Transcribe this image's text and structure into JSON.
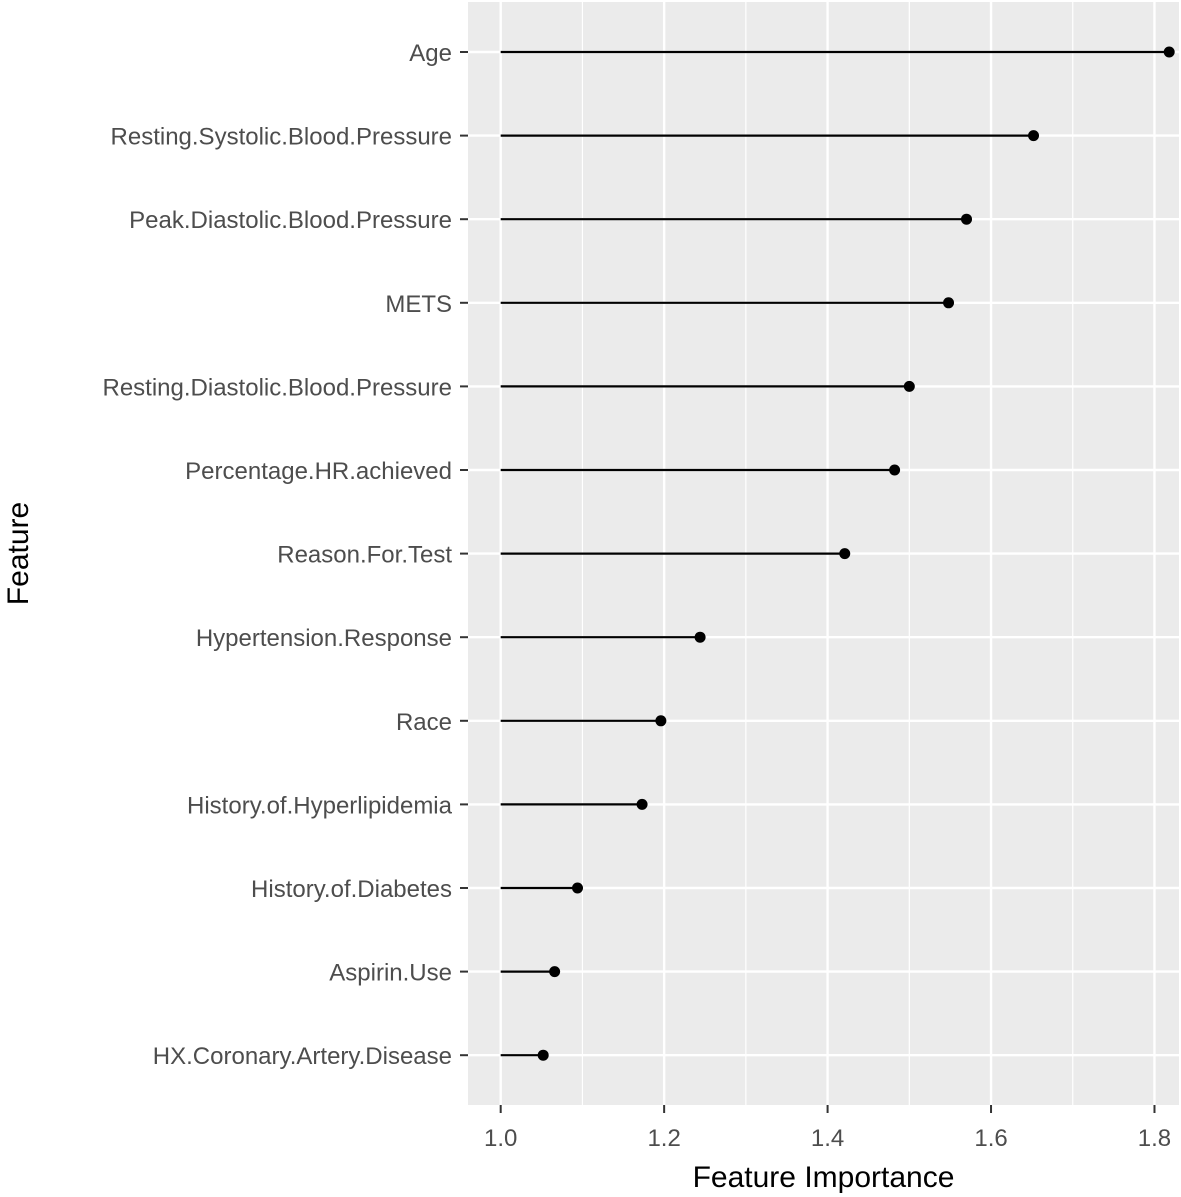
{
  "chart_data": {
    "type": "lollipop",
    "xlabel": "Feature Importance",
    "ylabel": "Feature",
    "xlim": [
      0.96,
      1.83
    ],
    "x_ticks": [
      "1.0",
      "1.2",
      "1.4",
      "1.6",
      "1.8"
    ],
    "x_tick_values": [
      1.0,
      1.2,
      1.4,
      1.6,
      1.8
    ],
    "baseline": 1.0,
    "grid": true,
    "panel_background": "#ebebeb",
    "gridline_color": "#ffffff",
    "mark_color": "#000000",
    "categories": [
      "Age",
      "Resting.Systolic.Blood.Pressure",
      "Peak.Diastolic.Blood.Pressure",
      "METS",
      "Resting.Diastolic.Blood.Pressure",
      "Percentage.HR.achieved",
      "Reason.For.Test",
      "Hypertension.Response",
      "Race",
      "History.of.Hyperlipidemia",
      "History.of.Diabetes",
      "Aspirin.Use",
      "HX.Coronary.Artery.Disease"
    ],
    "values": [
      1.818,
      1.652,
      1.57,
      1.548,
      1.5,
      1.482,
      1.421,
      1.244,
      1.196,
      1.173,
      1.094,
      1.066,
      1.052
    ]
  }
}
